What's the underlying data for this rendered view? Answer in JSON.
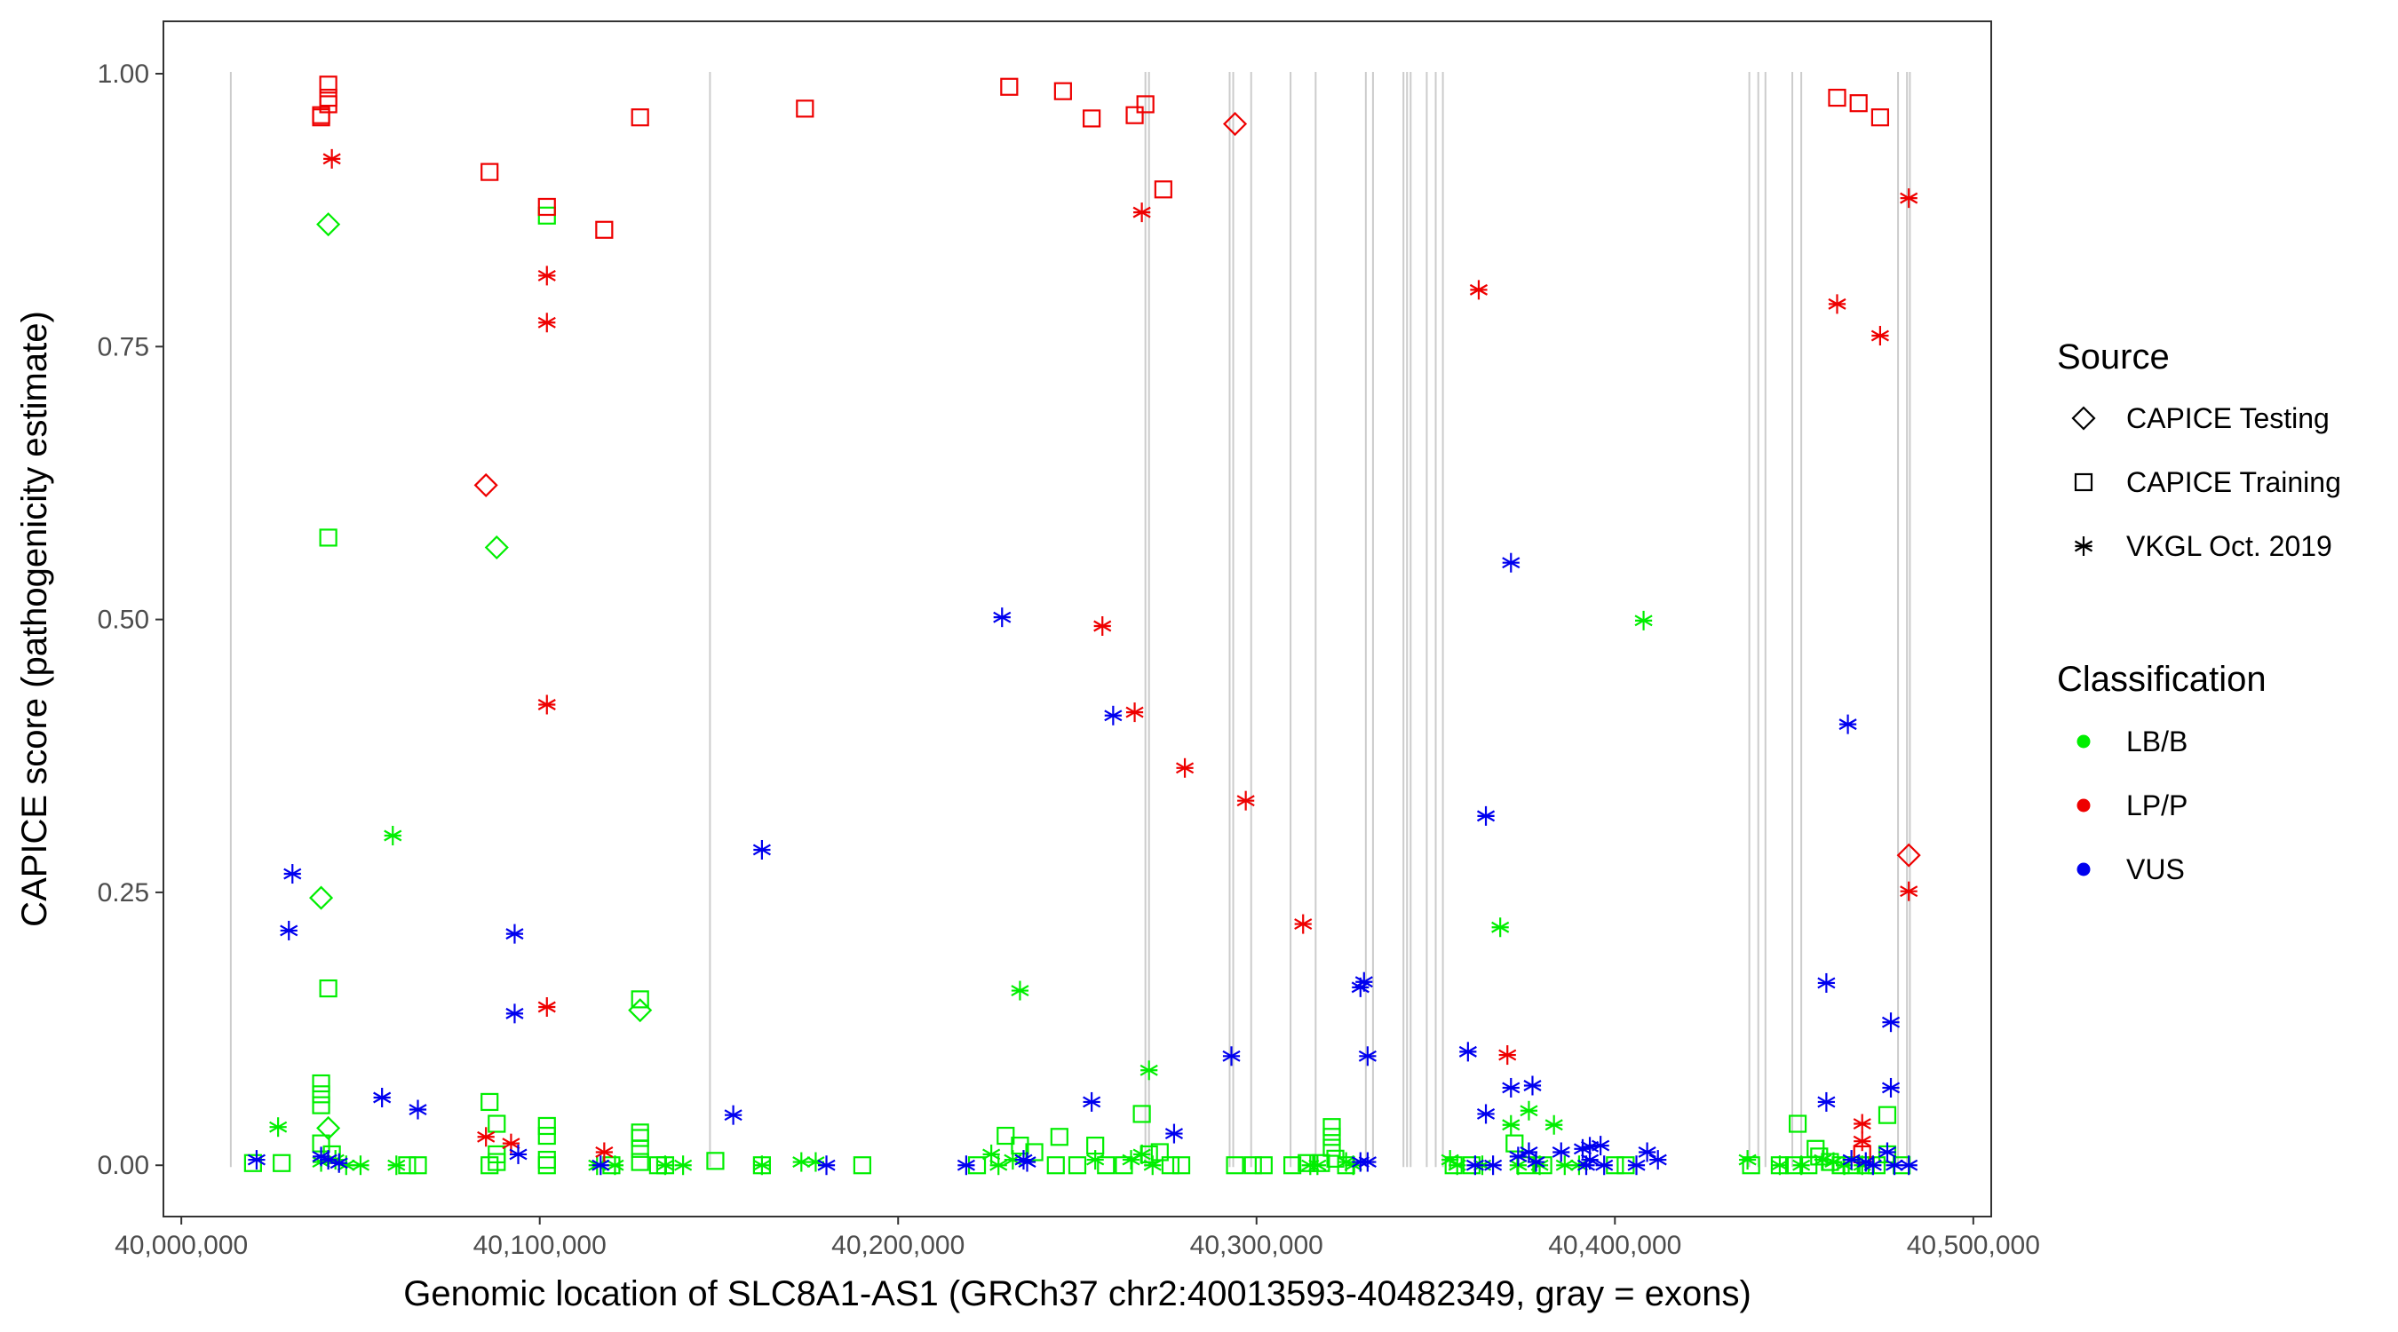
{
  "chart_data": {
    "type": "scatter",
    "xlabel": "Genomic location of SLC8A1-AS1 (GRCh37 chr2:40013593-40482349, gray = exons)",
    "ylabel": "CAPICE score (pathogenicity estimate)",
    "xlim": [
      39995000,
      40505000
    ],
    "ylim": [
      -0.047,
      1.048
    ],
    "x_ticks": [
      40000000,
      40100000,
      40200000,
      40300000,
      40400000,
      40500000
    ],
    "x_tick_labels": [
      "40,000,000",
      "40,100,000",
      "40,200,000",
      "40,300,000",
      "40,400,000",
      "40,500,000"
    ],
    "y_ticks": [
      0,
      0.25,
      0.5,
      0.75,
      1.0
    ],
    "y_tick_labels": [
      "0.00",
      "0.25",
      "0.50",
      "0.75",
      "1.00"
    ],
    "grid": false,
    "exons": [
      40013800,
      40147500,
      40269000,
      40270000,
      40292500,
      40293500,
      40298500,
      40309500,
      40316500,
      40330500,
      40332500,
      40341000,
      40342000,
      40343000,
      40347500,
      40350000,
      40352000,
      40437500,
      40440000,
      40442000,
      40449500,
      40452000,
      40479000,
      40481500,
      40482300
    ],
    "exon_color": "#cccccc",
    "legend_position": "right",
    "legend_source": {
      "title": "Source",
      "items": [
        {
          "label": "CAPICE Testing",
          "shape": "diamond"
        },
        {
          "label": "CAPICE Training",
          "shape": "square"
        },
        {
          "label": "VKGL Oct. 2019",
          "shape": "asterisk"
        }
      ]
    },
    "legend_classification": {
      "title": "Classification",
      "items": [
        {
          "label": "LB/B",
          "color": "#00ee00"
        },
        {
          "label": "LP/P",
          "color": "#ee0000"
        },
        {
          "label": "VUS",
          "color": "#0000ee"
        }
      ]
    },
    "series": [
      {
        "classification": "LB/B",
        "source": "CAPICE Testing",
        "shape": "diamond",
        "color": "#00ee00",
        "points": [
          [
            40041000,
            0.862
          ],
          [
            40039000,
            0.245
          ],
          [
            40041000,
            0.034
          ],
          [
            40088000,
            0.566
          ],
          [
            40128000,
            0.142
          ]
        ]
      },
      {
        "classification": "LB/B",
        "source": "CAPICE Training",
        "shape": "square",
        "color": "#00ee00",
        "points": [
          [
            40041000,
            0.575
          ],
          [
            40041000,
            0.162
          ],
          [
            40102000,
            0.87
          ],
          [
            40128000,
            0.152
          ],
          [
            40039000,
            0.075
          ],
          [
            40039000,
            0.065
          ],
          [
            40039000,
            0.055
          ],
          [
            40039000,
            0.02
          ],
          [
            40042000,
            0.01
          ],
          [
            40086000,
            0.058
          ],
          [
            40088000,
            0.038
          ],
          [
            40088000,
            0.01
          ],
          [
            40088000,
            0.003
          ],
          [
            40086000,
            0.0
          ],
          [
            40102000,
            0.036
          ],
          [
            40102000,
            0.027
          ],
          [
            40102000,
            0.005
          ],
          [
            40102000,
            0.0
          ],
          [
            40128000,
            0.03
          ],
          [
            40128000,
            0.025
          ],
          [
            40128000,
            0.015
          ],
          [
            40128000,
            0.003
          ],
          [
            40020000,
            0.002
          ],
          [
            40028000,
            0.002
          ],
          [
            40063000,
            0.0
          ],
          [
            40066000,
            0.0
          ],
          [
            40120000,
            0.0
          ],
          [
            40133000,
            0.0
          ],
          [
            40135000,
            0.0
          ],
          [
            40149000,
            0.004
          ],
          [
            40162000,
            0.0
          ],
          [
            40190000,
            0.0
          ],
          [
            40222000,
            0.0
          ],
          [
            40230000,
            0.027
          ],
          [
            40234000,
            0.018
          ],
          [
            40238000,
            0.012
          ],
          [
            40244000,
            0.0
          ],
          [
            40245000,
            0.026
          ],
          [
            40250000,
            0.0
          ],
          [
            40255000,
            0.018
          ],
          [
            40258000,
            0.0
          ],
          [
            40263000,
            0.0
          ],
          [
            40268000,
            0.047
          ],
          [
            40270000,
            0.01
          ],
          [
            40273000,
            0.012
          ],
          [
            40276000,
            0.0
          ],
          [
            40279000,
            0.0
          ],
          [
            40294000,
            0.0
          ],
          [
            40299000,
            0.0
          ],
          [
            40302000,
            0.0
          ],
          [
            40310000,
            0.0
          ],
          [
            40314000,
            0.002
          ],
          [
            40318000,
            0.002
          ],
          [
            40321000,
            0.035
          ],
          [
            40321000,
            0.026
          ],
          [
            40321000,
            0.016
          ],
          [
            40322000,
            0.006
          ],
          [
            40325000,
            0.0
          ],
          [
            40355000,
            0.0
          ],
          [
            40360000,
            0.0
          ],
          [
            40372000,
            0.02
          ],
          [
            40375000,
            0.0
          ],
          [
            40380000,
            0.0
          ],
          [
            40400000,
            0.0
          ],
          [
            40403000,
            0.0
          ],
          [
            40438000,
            0.0
          ],
          [
            40446000,
            0.0
          ],
          [
            40450000,
            0.0
          ],
          [
            40451000,
            0.038
          ],
          [
            40454000,
            0.0
          ],
          [
            40456000,
            0.015
          ],
          [
            40457000,
            0.008
          ],
          [
            40460000,
            0.003
          ],
          [
            40463000,
            0.0
          ],
          [
            40466000,
            0.0
          ],
          [
            40470000,
            0.0
          ],
          [
            40473000,
            0.0
          ],
          [
            40476000,
            0.046
          ],
          [
            40476000,
            0.01
          ],
          [
            40480000,
            0.0
          ]
        ]
      },
      {
        "classification": "LB/B",
        "source": "VKGL Oct. 2019",
        "shape": "asterisk",
        "color": "#00ee00",
        "points": [
          [
            40059000,
            0.302
          ],
          [
            40027000,
            0.035
          ],
          [
            40039000,
            0.003
          ],
          [
            40043000,
            0.005
          ],
          [
            40046000,
            0.0
          ],
          [
            40050000,
            0.0
          ],
          [
            40060000,
            0.0
          ],
          [
            40116000,
            0.0
          ],
          [
            40121000,
            0.0
          ],
          [
            40135000,
            0.0
          ],
          [
            40140000,
            0.0
          ],
          [
            40162000,
            0.0
          ],
          [
            40173000,
            0.003
          ],
          [
            40177000,
            0.003
          ],
          [
            40234000,
            0.16
          ],
          [
            40226000,
            0.01
          ],
          [
            40228000,
            0.0
          ],
          [
            40232000,
            0.005
          ],
          [
            40255000,
            0.005
          ],
          [
            40265000,
            0.005
          ],
          [
            40268000,
            0.01
          ],
          [
            40270000,
            0.087
          ],
          [
            40271000,
            0.0
          ],
          [
            40315000,
            0.0
          ],
          [
            40317000,
            0.0
          ],
          [
            40325000,
            0.003
          ],
          [
            40327000,
            0.0
          ],
          [
            40354000,
            0.005
          ],
          [
            40356000,
            0.0
          ],
          [
            40363000,
            0.0
          ],
          [
            40368000,
            0.218
          ],
          [
            40371000,
            0.037
          ],
          [
            40373000,
            0.0
          ],
          [
            40376000,
            0.05
          ],
          [
            40379000,
            0.0
          ],
          [
            40383000,
            0.037
          ],
          [
            40386000,
            0.0
          ],
          [
            40390000,
            0.0
          ],
          [
            40408000,
            0.499
          ],
          [
            40437000,
            0.005
          ],
          [
            40446000,
            0.0
          ],
          [
            40452000,
            0.0
          ],
          [
            40458000,
            0.005
          ],
          [
            40461000,
            0.003
          ],
          [
            40464000,
            0.0
          ],
          [
            40469000,
            0.0
          ]
        ]
      },
      {
        "classification": "LP/P",
        "source": "CAPICE Testing",
        "shape": "diamond",
        "color": "#ee0000",
        "points": [
          [
            40085000,
            0.623
          ],
          [
            40294000,
            0.954
          ],
          [
            40482000,
            0.284
          ]
        ]
      },
      {
        "classification": "LP/P",
        "source": "CAPICE Training",
        "shape": "square",
        "color": "#ee0000",
        "points": [
          [
            40041000,
            0.99
          ],
          [
            40041000,
            0.978
          ],
          [
            40041000,
            0.972
          ],
          [
            40039000,
            0.962
          ],
          [
            40039000,
            0.96
          ],
          [
            40086000,
            0.91
          ],
          [
            40102000,
            0.878
          ],
          [
            40118000,
            0.857
          ],
          [
            40128000,
            0.96
          ],
          [
            40174000,
            0.968
          ],
          [
            40231000,
            0.988
          ],
          [
            40246000,
            0.984
          ],
          [
            40254000,
            0.959
          ],
          [
            40266000,
            0.962
          ],
          [
            40269000,
            0.972
          ],
          [
            40274000,
            0.894
          ],
          [
            40462000,
            0.978
          ],
          [
            40468000,
            0.973
          ],
          [
            40474000,
            0.96
          ],
          [
            40469000,
            0.01
          ]
        ]
      },
      {
        "classification": "LP/P",
        "source": "VKGL Oct. 2019",
        "shape": "asterisk",
        "color": "#ee0000",
        "points": [
          [
            40042000,
            0.922
          ],
          [
            40102000,
            0.815
          ],
          [
            40102000,
            0.772
          ],
          [
            40102000,
            0.422
          ],
          [
            40102000,
            0.145
          ],
          [
            40085000,
            0.026
          ],
          [
            40092000,
            0.02
          ],
          [
            40118000,
            0.012
          ],
          [
            40257000,
            0.494
          ],
          [
            40266000,
            0.415
          ],
          [
            40268000,
            0.873
          ],
          [
            40280000,
            0.364
          ],
          [
            40297000,
            0.334
          ],
          [
            40313000,
            0.221
          ],
          [
            40362000,
            0.802
          ],
          [
            40370000,
            0.101
          ],
          [
            40462000,
            0.789
          ],
          [
            40474000,
            0.76
          ],
          [
            40482000,
            0.886
          ],
          [
            40482000,
            0.251
          ],
          [
            40469000,
            0.038
          ],
          [
            40469000,
            0.022
          ]
        ]
      },
      {
        "classification": "VUS",
        "source": "VKGL Oct. 2019",
        "shape": "asterisk",
        "color": "#0000ee",
        "points": [
          [
            40021000,
            0.005
          ],
          [
            40031000,
            0.267
          ],
          [
            40030000,
            0.215
          ],
          [
            40039000,
            0.008
          ],
          [
            40041000,
            0.005
          ],
          [
            40044000,
            0.002
          ],
          [
            40056000,
            0.062
          ],
          [
            40066000,
            0.051
          ],
          [
            40093000,
            0.212
          ],
          [
            40093000,
            0.139
          ],
          [
            40094000,
            0.01
          ],
          [
            40117000,
            0.0
          ],
          [
            40154000,
            0.046
          ],
          [
            40162000,
            0.289
          ],
          [
            40180000,
            0.0
          ],
          [
            40219000,
            0.0
          ],
          [
            40229000,
            0.502
          ],
          [
            40235000,
            0.005
          ],
          [
            40236000,
            0.003
          ],
          [
            40254000,
            0.058
          ],
          [
            40260000,
            0.412
          ],
          [
            40277000,
            0.029
          ],
          [
            40293000,
            0.1
          ],
          [
            40329000,
            0.163
          ],
          [
            40330000,
            0.168
          ],
          [
            40331000,
            0.1
          ],
          [
            40329000,
            0.003
          ],
          [
            40331000,
            0.003
          ],
          [
            40359000,
            0.104
          ],
          [
            40364000,
            0.32
          ],
          [
            40364000,
            0.047
          ],
          [
            40361000,
            0.0
          ],
          [
            40366000,
            0.0
          ],
          [
            40371000,
            0.552
          ],
          [
            40371000,
            0.071
          ],
          [
            40377000,
            0.073
          ],
          [
            40373000,
            0.008
          ],
          [
            40376000,
            0.012
          ],
          [
            40378000,
            0.003
          ],
          [
            40385000,
            0.012
          ],
          [
            40391000,
            0.015
          ],
          [
            40393000,
            0.017
          ],
          [
            40396000,
            0.018
          ],
          [
            40393000,
            0.005
          ],
          [
            40392000,
            0.0
          ],
          [
            40397000,
            0.0
          ],
          [
            40406000,
            0.0
          ],
          [
            40409000,
            0.012
          ],
          [
            40412000,
            0.005
          ],
          [
            40459000,
            0.167
          ],
          [
            40459000,
            0.058
          ],
          [
            40465000,
            0.404
          ],
          [
            40477000,
            0.131
          ],
          [
            40477000,
            0.071
          ],
          [
            40476000,
            0.012
          ],
          [
            40466000,
            0.005
          ],
          [
            40470000,
            0.003
          ],
          [
            40472000,
            0.0
          ],
          [
            40478000,
            0.0
          ],
          [
            40482000,
            0.0
          ]
        ]
      }
    ]
  }
}
